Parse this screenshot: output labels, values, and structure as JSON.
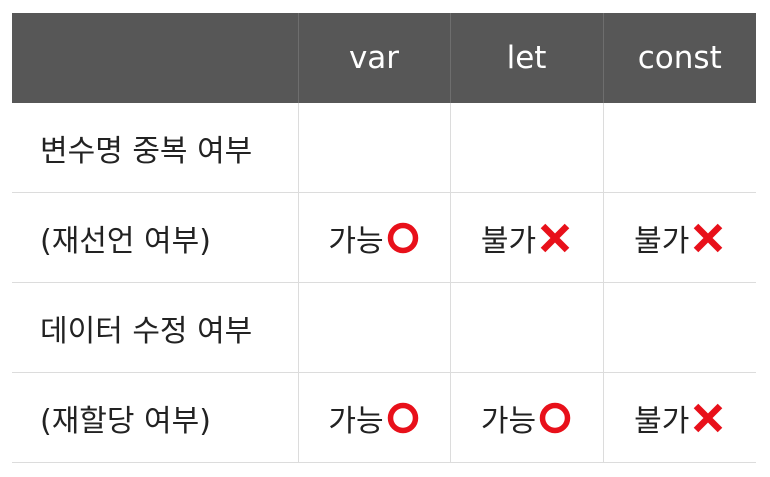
{
  "table": {
    "headers": [
      "",
      "var",
      "let",
      "const"
    ],
    "rows": [
      {
        "label": "변수명 중복 여부",
        "cells": [
          {
            "text": "",
            "mark": "none"
          },
          {
            "text": "",
            "mark": "none"
          },
          {
            "text": "",
            "mark": "none"
          }
        ]
      },
      {
        "label": "(재선언 여부)",
        "cells": [
          {
            "text": "가능",
            "mark": "circle-icon"
          },
          {
            "text": "불가",
            "mark": "cross-icon"
          },
          {
            "text": "불가",
            "mark": "cross-icon"
          }
        ]
      },
      {
        "label": "데이터 수정 여부",
        "cells": [
          {
            "text": "",
            "mark": "none"
          },
          {
            "text": "",
            "mark": "none"
          },
          {
            "text": "",
            "mark": "none"
          }
        ]
      },
      {
        "label": "(재할당 여부)",
        "cells": [
          {
            "text": "가능",
            "mark": "circle-icon"
          },
          {
            "text": "가능",
            "mark": "circle-icon"
          },
          {
            "text": "불가",
            "mark": "cross-icon"
          }
        ]
      }
    ]
  },
  "colors": {
    "header_bg": "#575757",
    "header_text": "#ffffff",
    "mark_red": "#e8101a",
    "grid_line": "#dcdcdc"
  }
}
